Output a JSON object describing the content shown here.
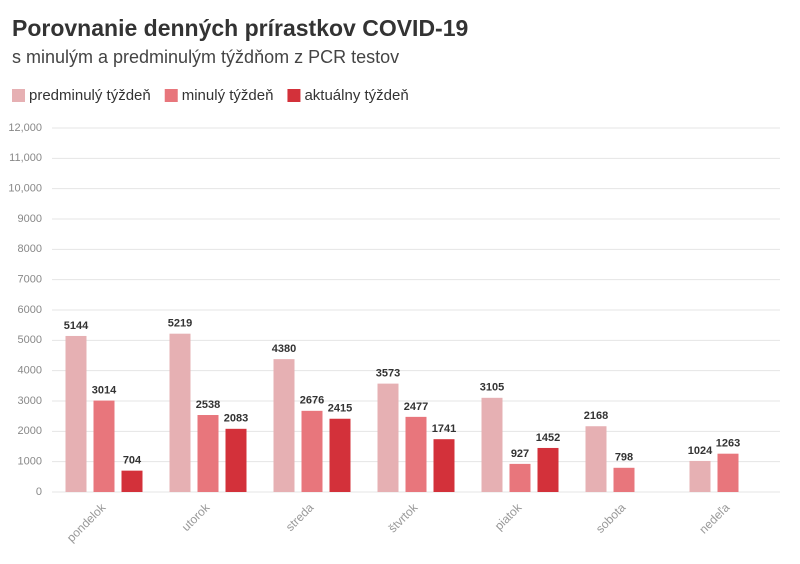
{
  "chart_data": {
    "type": "bar",
    "title": "Porovnanie denných prírastkov COVID-19",
    "subtitle": "s minulým a predminulým týždňom z PCR testov",
    "categories": [
      "pondelok",
      "utorok",
      "streda",
      "štvrtok",
      "piatok",
      "sobota",
      "nedeľa"
    ],
    "series": [
      {
        "name": "predminulý týždeň",
        "color": "#e6b0b3",
        "values": [
          5144,
          5219,
          4380,
          3573,
          3105,
          2168,
          1024
        ]
      },
      {
        "name": "minulý týždeň",
        "color": "#e8767c",
        "values": [
          3014,
          2538,
          2676,
          2477,
          927,
          798,
          1263
        ]
      },
      {
        "name": "aktuálny týždeň",
        "color": "#d3313a",
        "values": [
          704,
          2083,
          2415,
          1741,
          1452,
          null,
          null
        ]
      }
    ],
    "ylim": [
      0,
      12000
    ],
    "yticks": [
      0,
      1000,
      2000,
      3000,
      4000,
      5000,
      6000,
      7000,
      8000,
      9000,
      {
        "value": 10000,
        "label": "10,000"
      },
      {
        "value": 11000,
        "label": "11,000"
      },
      {
        "value": 12000,
        "label": "12,000"
      }
    ],
    "grid": true
  }
}
